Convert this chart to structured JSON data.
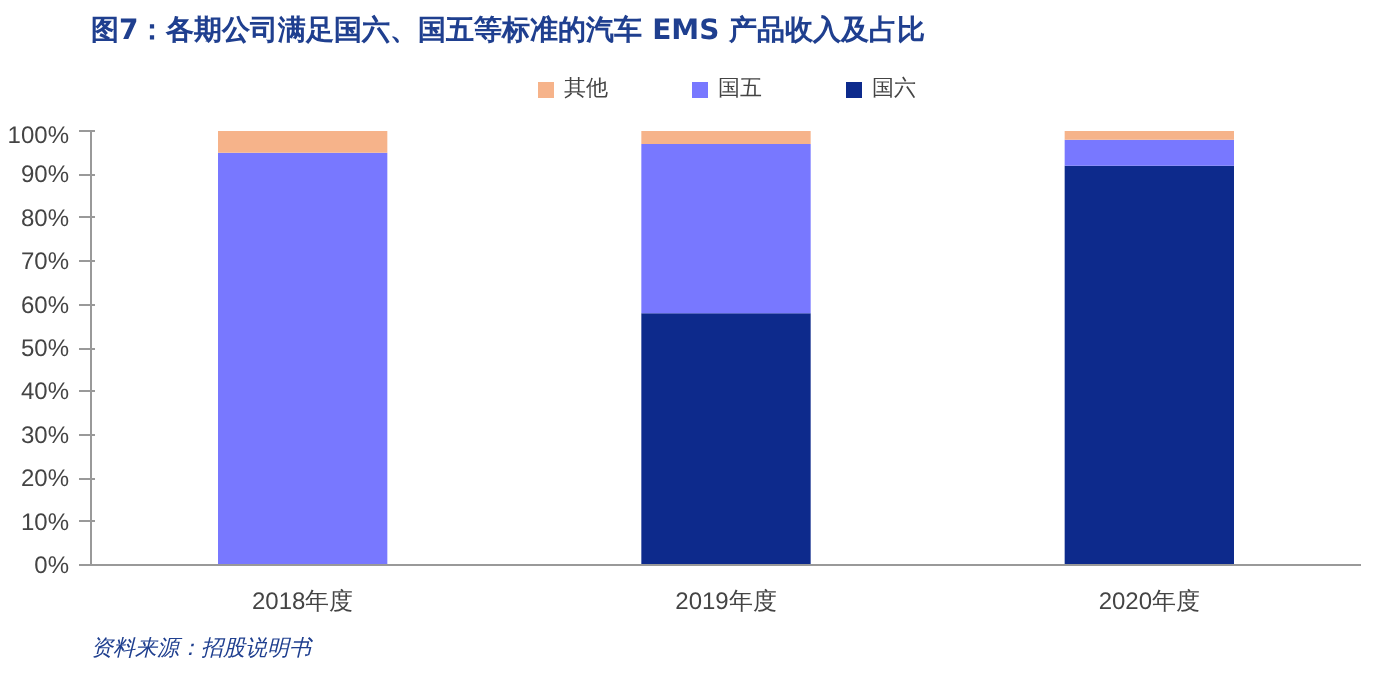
{
  "chart_data": {
    "type": "bar",
    "title": "图7：各期公司满足国六、国五等标准的汽车 EMS 产品收入及占比",
    "categories": [
      "2018年度",
      "2019年度",
      "2020年度"
    ],
    "stacked": true,
    "legend": "top",
    "grid": false,
    "series": [
      {
        "name": "国六",
        "color": "#0d2a8c",
        "values": [
          0,
          58,
          92
        ]
      },
      {
        "name": "国五",
        "color": "#7878ff",
        "values": [
          95,
          39,
          6
        ]
      },
      {
        "name": "其他",
        "color": "#f6b38a",
        "values": [
          5,
          3,
          2
        ]
      }
    ],
    "ylim": [
      0,
      100
    ],
    "yticks": [
      {
        "value": 0,
        "label": "0%"
      },
      {
        "value": 10,
        "label": "10%"
      },
      {
        "value": 20,
        "label": "20%"
      },
      {
        "value": 30,
        "label": "30%"
      },
      {
        "value": 40,
        "label": "40%"
      },
      {
        "value": 50,
        "label": "50%"
      },
      {
        "value": 60,
        "label": "60%"
      },
      {
        "value": 70,
        "label": "70%"
      },
      {
        "value": 80,
        "label": "80%"
      },
      {
        "value": 90,
        "label": "90%"
      },
      {
        "value": 100,
        "label": "100%"
      }
    ],
    "annotations": [
      "资料来源：招股说明书"
    ]
  }
}
